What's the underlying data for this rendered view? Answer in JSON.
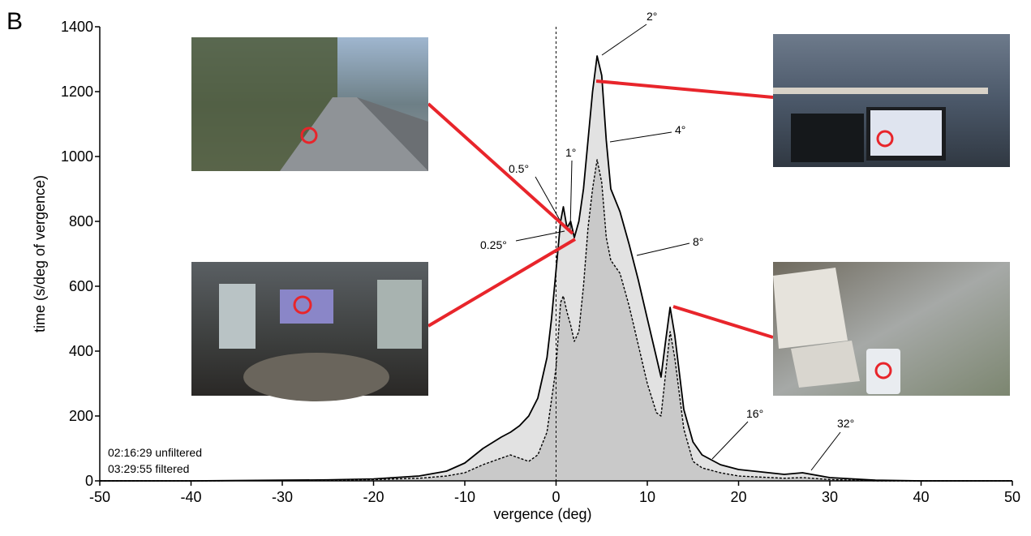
{
  "chart_data": {
    "type": "area",
    "panel_label": "B",
    "x_label": "vergence (deg)",
    "y_label": "time (s/deg of vergence)",
    "x": [
      -50,
      -40,
      -30,
      -25,
      -20,
      -15,
      -12,
      -10,
      -8,
      -6,
      -5,
      -4,
      -3,
      -2,
      -1,
      -0.5,
      0,
      0.5,
      0.8,
      1.2,
      1.6,
      2,
      2.5,
      3,
      3.5,
      4,
      4.5,
      5,
      5.5,
      6,
      7,
      8,
      9,
      10,
      11,
      11.5,
      12,
      12.5,
      13,
      14,
      15,
      16,
      18,
      20,
      25,
      27,
      30,
      35,
      40,
      50
    ],
    "series": [
      {
        "name": "02:16:29 unfiltered",
        "color": "#000000",
        "fill": "#e2e2e2",
        "line_style": "solid",
        "values": [
          0,
          0,
          2,
          3,
          6,
          15,
          30,
          55,
          100,
          135,
          150,
          170,
          200,
          255,
          380,
          500,
          650,
          800,
          845,
          780,
          800,
          750,
          800,
          900,
          1050,
          1200,
          1310,
          1250,
          1050,
          900,
          830,
          730,
          620,
          500,
          380,
          320,
          430,
          535,
          450,
          220,
          120,
          80,
          50,
          35,
          20,
          25,
          10,
          2,
          0,
          0
        ]
      },
      {
        "name": "03:29:55 filtered",
        "color": "#000000",
        "fill": "#c9c9c9",
        "line_style": "dashed",
        "values": [
          0,
          0,
          1,
          2,
          4,
          8,
          15,
          25,
          50,
          70,
          80,
          70,
          60,
          80,
          150,
          250,
          350,
          550,
          570,
          520,
          480,
          430,
          460,
          600,
          780,
          900,
          990,
          920,
          750,
          680,
          640,
          540,
          420,
          300,
          210,
          200,
          330,
          460,
          380,
          160,
          60,
          40,
          25,
          15,
          8,
          10,
          4,
          0,
          0,
          0
        ]
      }
    ],
    "reference_x": 0,
    "xlim": [
      -50,
      50
    ],
    "xticks": [
      -50,
      -40,
      -30,
      -20,
      -10,
      0,
      10,
      20,
      30,
      40,
      50
    ],
    "ylim": [
      0,
      1400
    ],
    "yticks": [
      0,
      200,
      400,
      600,
      800,
      1000,
      1200,
      1400
    ],
    "grid": false,
    "annotations": [
      "0.25°",
      "0.5°",
      "1°",
      "2°",
      "4°",
      "8°",
      "16°",
      "32°"
    ]
  }
}
